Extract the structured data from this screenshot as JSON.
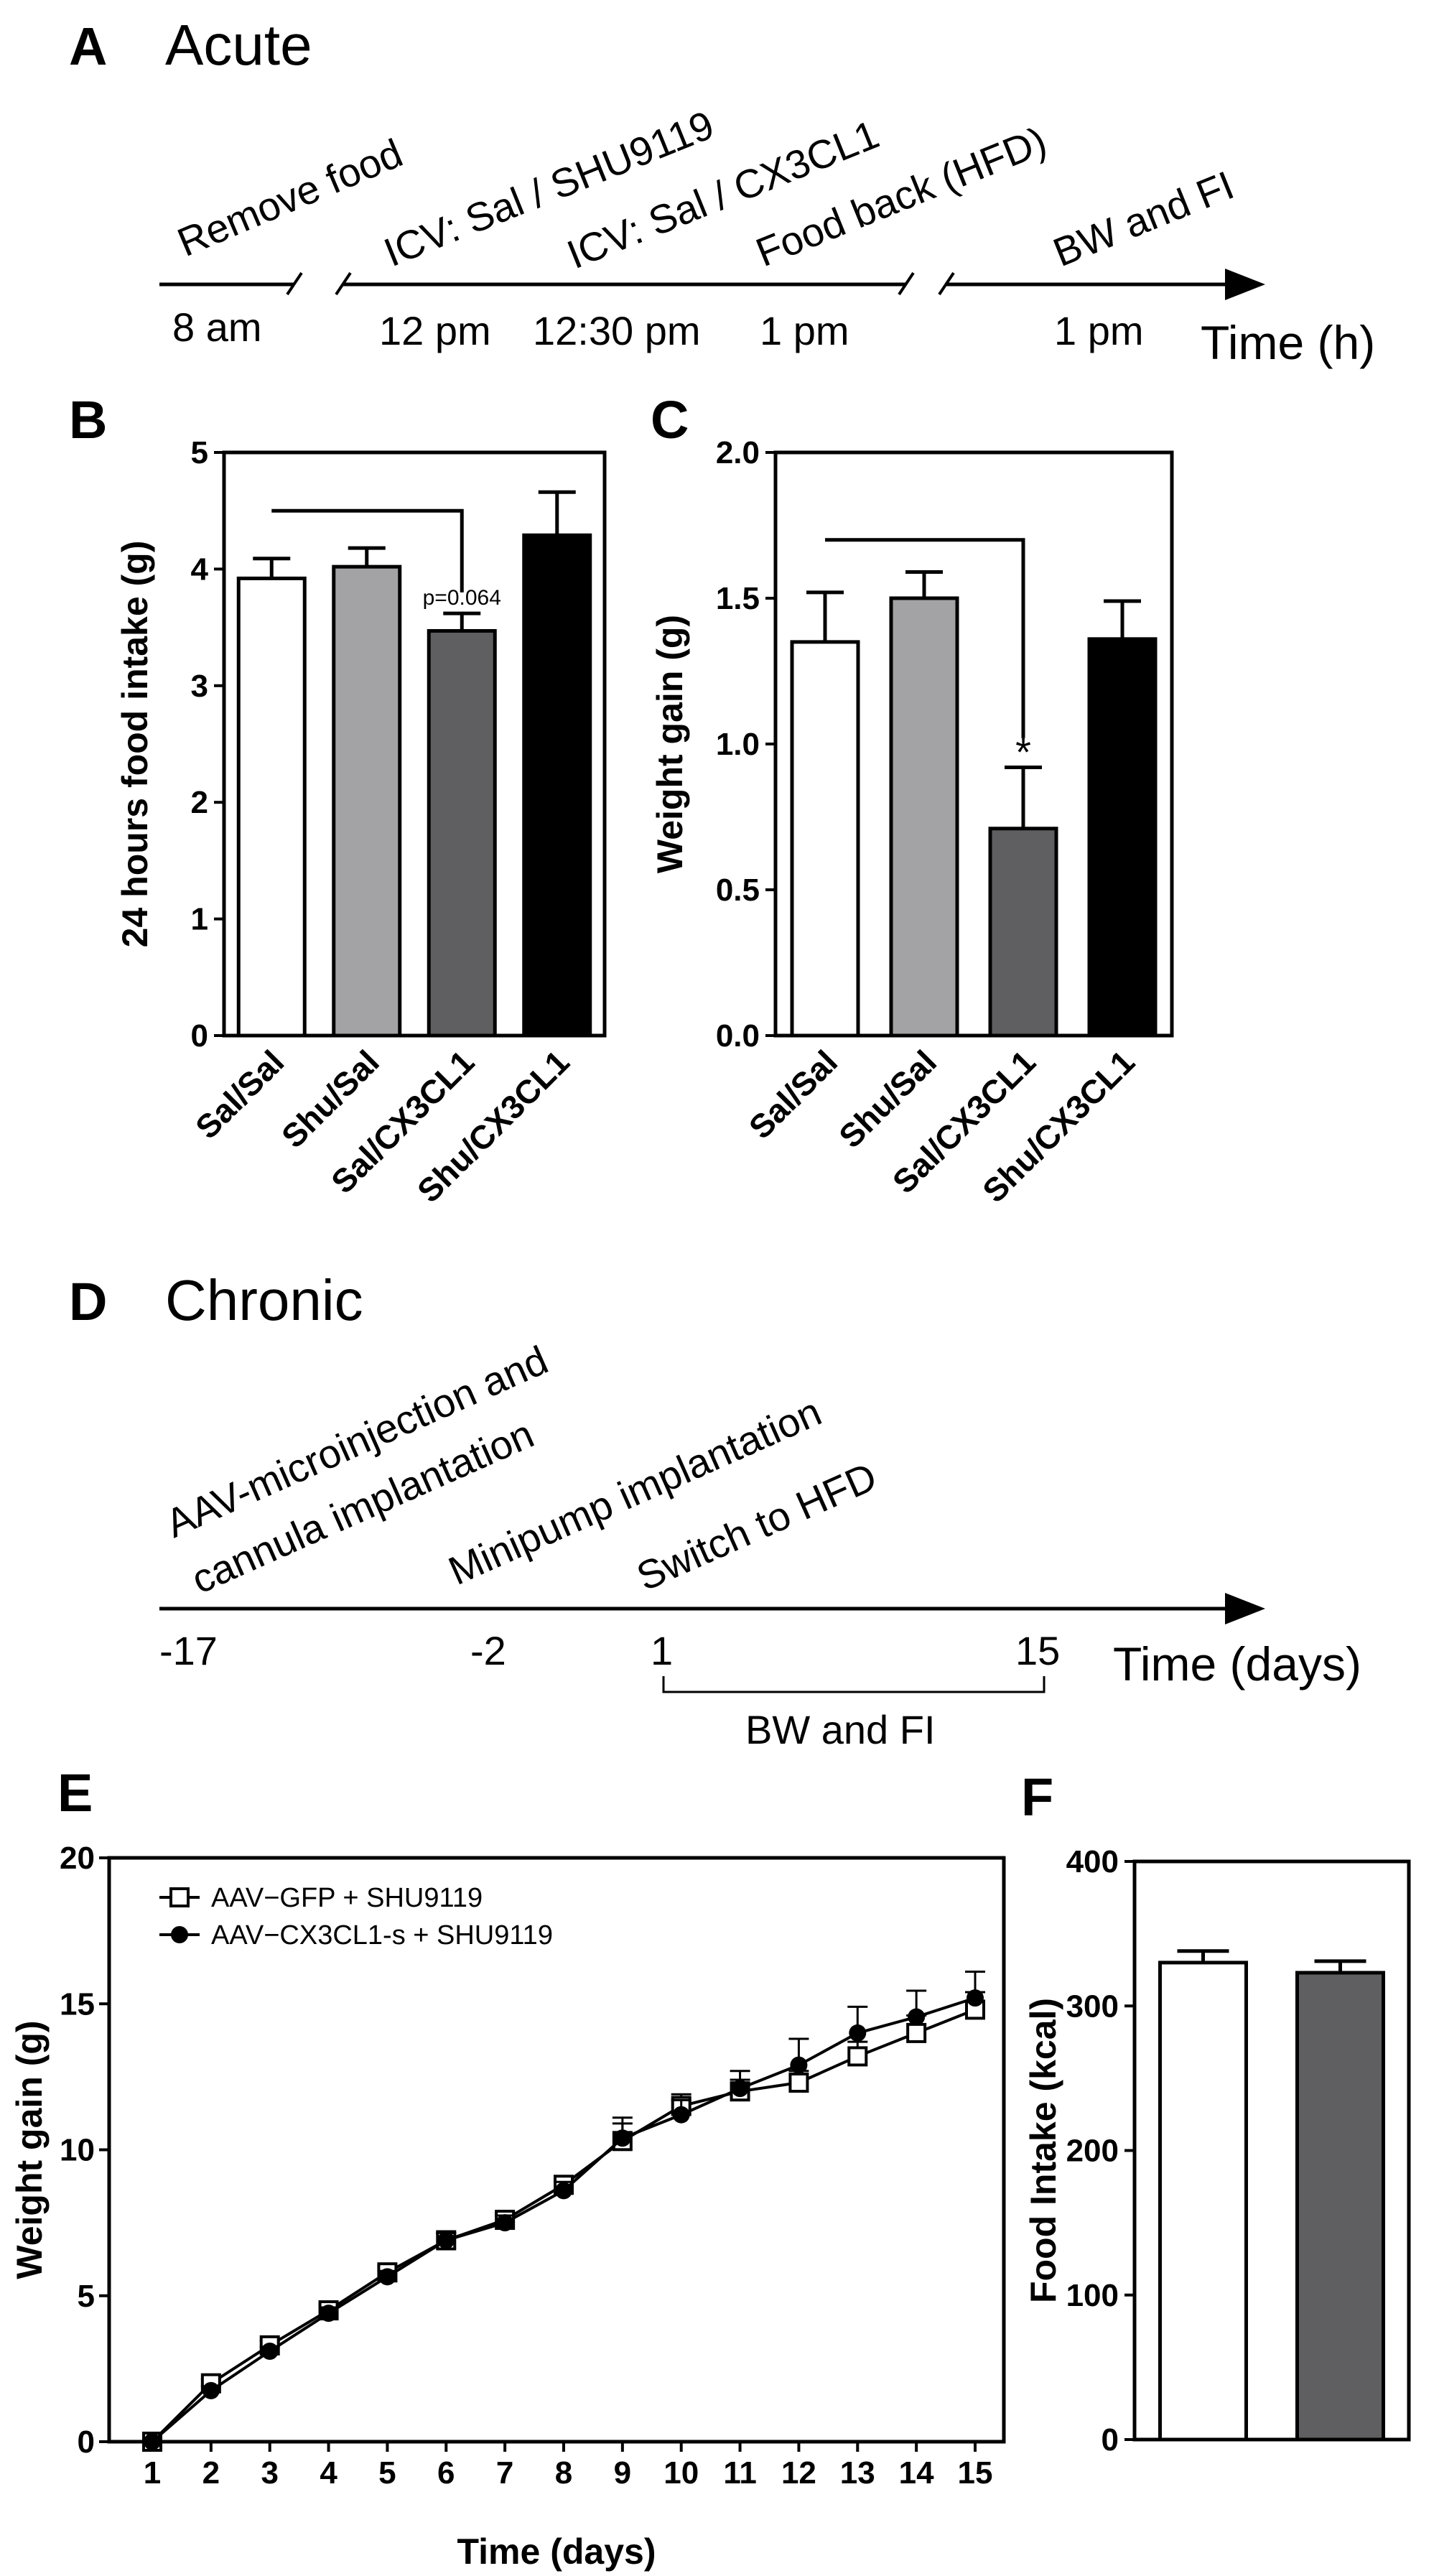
{
  "colors": {
    "white": "#ffffff",
    "light_gray": "#a3a3a5",
    "dark_gray": "#5f5f61",
    "black": "#000000"
  },
  "panel_a": {
    "label": "A",
    "title": "Acute",
    "events": [
      "Remove food",
      "ICV: Sal / SHU9119",
      "ICV: Sal / CX3CL1",
      "Food back (HFD)",
      "BW and FI"
    ],
    "times": [
      "8 am",
      "12 pm",
      "12:30 pm",
      "1 pm",
      "1 pm"
    ],
    "axis_label": "Time (h)"
  },
  "panel_d": {
    "label": "D",
    "title": "Chronic",
    "events": [
      "AAV-microinjection and",
      "cannula implantation",
      "Minipump implantation",
      "Switch to HFD"
    ],
    "times": [
      "-17",
      "-2",
      "1",
      "15"
    ],
    "bracket_label": "BW and FI",
    "axis_label": "Time (days)"
  },
  "chart_data": [
    {
      "id": "B",
      "label": "B",
      "type": "bar",
      "title": "",
      "ylabel": "24 hours food intake (g)",
      "xlabel": "",
      "ylim": [
        0,
        5
      ],
      "yticks": [
        "0",
        "1",
        "2",
        "3",
        "4",
        "5"
      ],
      "categories": [
        "Sal/Sal",
        "Shu/Sal",
        "Sal/CX3CL1",
        "Shu/CX3CL1"
      ],
      "values": [
        3.92,
        4.02,
        3.47,
        4.29
      ],
      "errors": [
        0.17,
        0.16,
        0.15,
        0.37
      ],
      "fills": [
        "white",
        "light_gray",
        "dark_gray",
        "black"
      ],
      "annotation": "p=0.064"
    },
    {
      "id": "C",
      "label": "C",
      "type": "bar",
      "title": "",
      "ylabel": "Weight gain (g)",
      "xlabel": "",
      "ylim": [
        0,
        2
      ],
      "yticks": [
        "0.0",
        "0.5",
        "1.0",
        "1.5",
        "2.0"
      ],
      "categories": [
        "Sal/Sal",
        "Shu/Sal",
        "Sal/CX3CL1",
        "Shu/CX3CL1"
      ],
      "values": [
        1.35,
        1.5,
        0.71,
        1.36
      ],
      "errors": [
        0.17,
        0.09,
        0.21,
        0.13
      ],
      "fills": [
        "white",
        "light_gray",
        "dark_gray",
        "black"
      ],
      "annotation": "*"
    },
    {
      "id": "E",
      "label": "E",
      "type": "line",
      "title": "",
      "xlabel": "Time (days)",
      "ylabel": "Weight gain (g)",
      "xlim": [
        1,
        15
      ],
      "ylim": [
        0,
        20
      ],
      "x": [
        1,
        2,
        3,
        4,
        5,
        6,
        7,
        8,
        9,
        10,
        11,
        12,
        13,
        14,
        15
      ],
      "yticks": [
        "0",
        "5",
        "10",
        "15",
        "20"
      ],
      "legend_position": "top-left",
      "series": [
        {
          "name": "AAV−GFP + SHU9119",
          "marker": "open-square",
          "values": [
            0,
            2.0,
            3.3,
            4.5,
            5.8,
            6.9,
            7.6,
            8.8,
            10.3,
            11.5,
            12.0,
            12.3,
            13.2,
            14.0,
            14.8
          ],
          "errors": [
            0,
            0.15,
            0.15,
            0.2,
            0.2,
            0.25,
            0.25,
            0.3,
            0.6,
            0.4,
            0.4,
            0.4,
            0.5,
            0.6,
            0.6
          ]
        },
        {
          "name": "AAV−CX3CL1-s + SHU9119",
          "marker": "filled-circle",
          "values": [
            0,
            1.75,
            3.1,
            4.4,
            5.65,
            6.9,
            7.5,
            8.6,
            10.4,
            11.2,
            12.1,
            12.9,
            14.0,
            14.55,
            15.2
          ],
          "errors": [
            0,
            0.15,
            0.15,
            0.2,
            0.2,
            0.25,
            0.25,
            0.3,
            0.7,
            0.5,
            0.6,
            0.9,
            0.9,
            0.9,
            0.9
          ]
        }
      ]
    },
    {
      "id": "F",
      "label": "F",
      "type": "bar",
      "title": "",
      "xlabel": "",
      "ylabel": "Food Intake (kcal)",
      "ylim": [
        0,
        400
      ],
      "yticks": [
        "0",
        "100",
        "200",
        "300",
        "400"
      ],
      "categories": [
        "",
        ""
      ],
      "values": [
        330,
        323
      ],
      "errors": [
        8,
        8
      ],
      "fills": [
        "white",
        "dark_gray"
      ]
    }
  ]
}
